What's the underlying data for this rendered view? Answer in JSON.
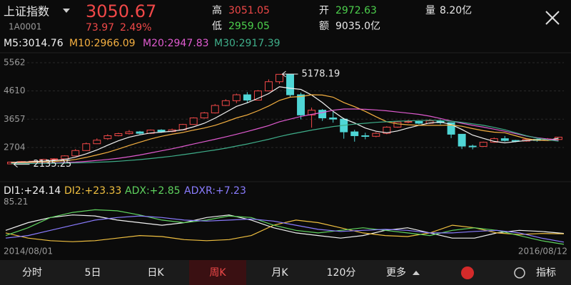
{
  "header": {
    "name": "上证指数",
    "code": "1A0001",
    "price": "3050.67",
    "change": "73.97",
    "change_pct": "2.49%",
    "high_label": "高",
    "high": "3051.05",
    "low_label": "低",
    "low": "2959.05",
    "open_label": "开",
    "open": "2972.63",
    "amount_label": "额",
    "amount": "9035.0亿",
    "volume_label": "量",
    "volume": "8.20亿"
  },
  "chart_data": [
    {
      "type": "candlestick",
      "up_color": "#f04848",
      "down_color": "#4fd6d6",
      "ylim": [
        1670,
        5754
      ],
      "yticks": [
        2704,
        3657,
        4610,
        5562
      ],
      "grid": true,
      "high_label": "5178.19",
      "low_label": "2135.25",
      "open": [
        2150,
        2210,
        2230,
        2240,
        2300,
        2320,
        2420,
        2600,
        2830,
        3000,
        3100,
        3170,
        3230,
        3180,
        3290,
        3240,
        3300,
        3480,
        3700,
        3870,
        4120,
        4280,
        4480,
        4300,
        4610,
        4920,
        5170,
        4480,
        3800,
        3960,
        3700,
        3660,
        3230,
        3100,
        3080,
        3180,
        3390,
        3560,
        3580,
        3520,
        3600,
        3540,
        3150,
        2750,
        2740,
        2880,
        3000,
        2940,
        2920,
        2980,
        2940,
        2972.63
      ],
      "close": [
        2210,
        2230,
        2240,
        2300,
        2320,
        2420,
        2600,
        2830,
        2950,
        3100,
        3170,
        3230,
        3180,
        3290,
        3240,
        3300,
        3480,
        3700,
        3870,
        4120,
        4280,
        4480,
        4300,
        4610,
        4920,
        5170,
        4480,
        3800,
        3960,
        3700,
        3660,
        3230,
        3100,
        3080,
        3180,
        3390,
        3560,
        3580,
        3520,
        3600,
        3540,
        3150,
        2750,
        2740,
        2880,
        3000,
        2940,
        2920,
        2980,
        2940,
        2990,
        3050.67
      ],
      "high": [
        2225,
        2245,
        2260,
        2320,
        2340,
        2440,
        2650,
        2870,
        3010,
        3150,
        3200,
        3290,
        3260,
        3310,
        3320,
        3340,
        3500,
        3720,
        3900,
        4170,
        4330,
        4520,
        4570,
        4640,
        5000,
        5178.19,
        5170,
        4550,
        4050,
        4000,
        3900,
        3700,
        3300,
        3200,
        3220,
        3420,
        3590,
        3640,
        3620,
        3660,
        3650,
        3550,
        3160,
        2800,
        2900,
        3040,
        3090,
        2960,
        3010,
        3000,
        3020,
        3051.05
      ],
      "low": [
        2135.25,
        2195,
        2215,
        2230,
        2290,
        2310,
        2410,
        2590,
        2820,
        2960,
        3080,
        3140,
        3150,
        3160,
        3200,
        3220,
        3280,
        3470,
        3680,
        3850,
        4100,
        4200,
        4200,
        4290,
        4600,
        4850,
        4400,
        3650,
        3370,
        3600,
        3540,
        3000,
        2900,
        2980,
        3050,
        3150,
        3370,
        3520,
        3480,
        3500,
        3480,
        3020,
        2650,
        2640,
        2720,
        2860,
        2900,
        2880,
        2900,
        2900,
        2920,
        2959.05
      ],
      "series": [
        {
          "name": "M5:3014.76",
          "color": "#f2f2f2",
          "values": [
            2200,
            2210,
            2225,
            2245,
            2260,
            2300,
            2380,
            2490,
            2620,
            2780,
            2930,
            3050,
            3130,
            3190,
            3220,
            3250,
            3300,
            3400,
            3520,
            3690,
            3890,
            4090,
            4210,
            4360,
            4520,
            4750,
            4700,
            4660,
            4470,
            4220,
            3920,
            3670,
            3530,
            3360,
            3250,
            3200,
            3260,
            3360,
            3450,
            3530,
            3560,
            3480,
            3310,
            3120,
            3010,
            2910,
            2860,
            2900,
            2940,
            2960,
            2950,
            3014.76
          ]
        },
        {
          "name": "M10:2966.09",
          "color": "#f5b041",
          "values": [
            2190,
            2195,
            2205,
            2215,
            2230,
            2255,
            2300,
            2370,
            2450,
            2540,
            2650,
            2770,
            2880,
            2990,
            3080,
            3150,
            3210,
            3290,
            3360,
            3450,
            3570,
            3700,
            3800,
            3940,
            4100,
            4290,
            4400,
            4420,
            4480,
            4470,
            4400,
            4220,
            4080,
            3920,
            3740,
            3570,
            3500,
            3470,
            3450,
            3450,
            3450,
            3460,
            3420,
            3340,
            3270,
            3220,
            3200,
            3100,
            3000,
            2950,
            2940,
            2966.09
          ]
        },
        {
          "name": "M20:2947.83",
          "color": "#e05bd0",
          "values": [
            2170,
            2172,
            2175,
            2180,
            2185,
            2195,
            2210,
            2235,
            2265,
            2300,
            2340,
            2390,
            2450,
            2520,
            2590,
            2660,
            2740,
            2820,
            2900,
            2980,
            3060,
            3150,
            3240,
            3340,
            3440,
            3570,
            3660,
            3750,
            3820,
            3880,
            3960,
            4000,
            4000,
            3990,
            3970,
            3940,
            3900,
            3860,
            3820,
            3760,
            3680,
            3600,
            3520,
            3450,
            3390,
            3320,
            3250,
            3170,
            3090,
            3030,
            2990,
            2947.83
          ]
        },
        {
          "name": "M30:2917.39",
          "color": "#3fae8a",
          "values": [
            2160,
            2162,
            2164,
            2167,
            2170,
            2175,
            2182,
            2192,
            2205,
            2220,
            2240,
            2265,
            2295,
            2330,
            2370,
            2410,
            2460,
            2510,
            2565,
            2620,
            2680,
            2750,
            2820,
            2900,
            2980,
            3070,
            3150,
            3220,
            3290,
            3350,
            3410,
            3450,
            3490,
            3520,
            3550,
            3570,
            3590,
            3600,
            3610,
            3620,
            3610,
            3590,
            3550,
            3500,
            3450,
            3380,
            3300,
            3200,
            3100,
            3020,
            2960,
            2917.39
          ]
        }
      ]
    },
    {
      "type": "line",
      "ylim": [
        0,
        90
      ],
      "yticks": [
        85.21
      ],
      "x": [
        "2014/08/01",
        null,
        null,
        null,
        null,
        null,
        null,
        null,
        null,
        null,
        null,
        null,
        null,
        null,
        null,
        null,
        null,
        null,
        null,
        null,
        null,
        null,
        null,
        null,
        null,
        "2016/08/12"
      ],
      "series": [
        {
          "name": "DI1:+24.14",
          "color": "#f2f2f2",
          "values": [
            30,
            45,
            55,
            60,
            58,
            50,
            45,
            40,
            45,
            55,
            60,
            50,
            35,
            25,
            20,
            15,
            20,
            30,
            35,
            25,
            15,
            15,
            25,
            30,
            28,
            24.14
          ]
        },
        {
          "name": "DI2:+23.33",
          "color": "#f0c040",
          "values": [
            25,
            15,
            10,
            8,
            10,
            15,
            20,
            18,
            12,
            10,
            12,
            20,
            40,
            50,
            45,
            35,
            25,
            20,
            18,
            25,
            40,
            35,
            25,
            22,
            24,
            23.33
          ]
        },
        {
          "name": "ADX:+2.85",
          "color": "#5fd35f",
          "values": [
            20,
            35,
            55,
            65,
            70,
            68,
            60,
            50,
            45,
            50,
            58,
            55,
            40,
            30,
            25,
            30,
            35,
            30,
            25,
            20,
            30,
            35,
            30,
            20,
            10,
            2.85
          ]
        },
        {
          "name": "ADXR:+7.23",
          "color": "#8a7cff",
          "values": [
            15,
            20,
            30,
            40,
            50,
            55,
            58,
            55,
            50,
            48,
            50,
            52,
            48,
            40,
            32,
            28,
            30,
            32,
            30,
            25,
            25,
            28,
            30,
            25,
            15,
            7.23
          ]
        }
      ]
    }
  ],
  "tabs": [
    "分时",
    "5日",
    "日K",
    "周K",
    "月K",
    "120分",
    "更多",
    "指标"
  ]
}
